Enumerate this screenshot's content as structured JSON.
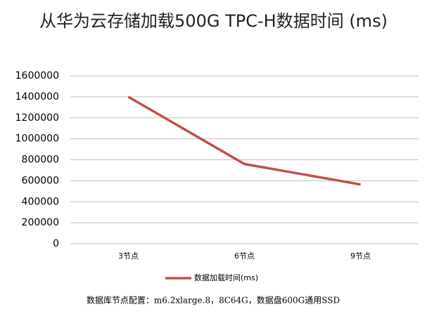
{
  "chart_data": {
    "type": "line",
    "title": "从华为云存储加载500G TPC-H数据时间 (ms)",
    "categories": [
      "3节点",
      "6节点",
      "9节点"
    ],
    "series": [
      {
        "name": "数据加载时间(ms)",
        "color": "#c0504d",
        "values": [
          1400000,
          760000,
          565000
        ]
      }
    ],
    "ylim": [
      0,
      1600000
    ],
    "yticks": [
      0,
      200000,
      400000,
      600000,
      800000,
      1000000,
      1200000,
      1400000,
      1600000
    ],
    "grid": true,
    "legend": "bottom",
    "note": "数据库节点配置：m6.2xlarge.8，8C64G，数据盘600G通用SSD"
  }
}
